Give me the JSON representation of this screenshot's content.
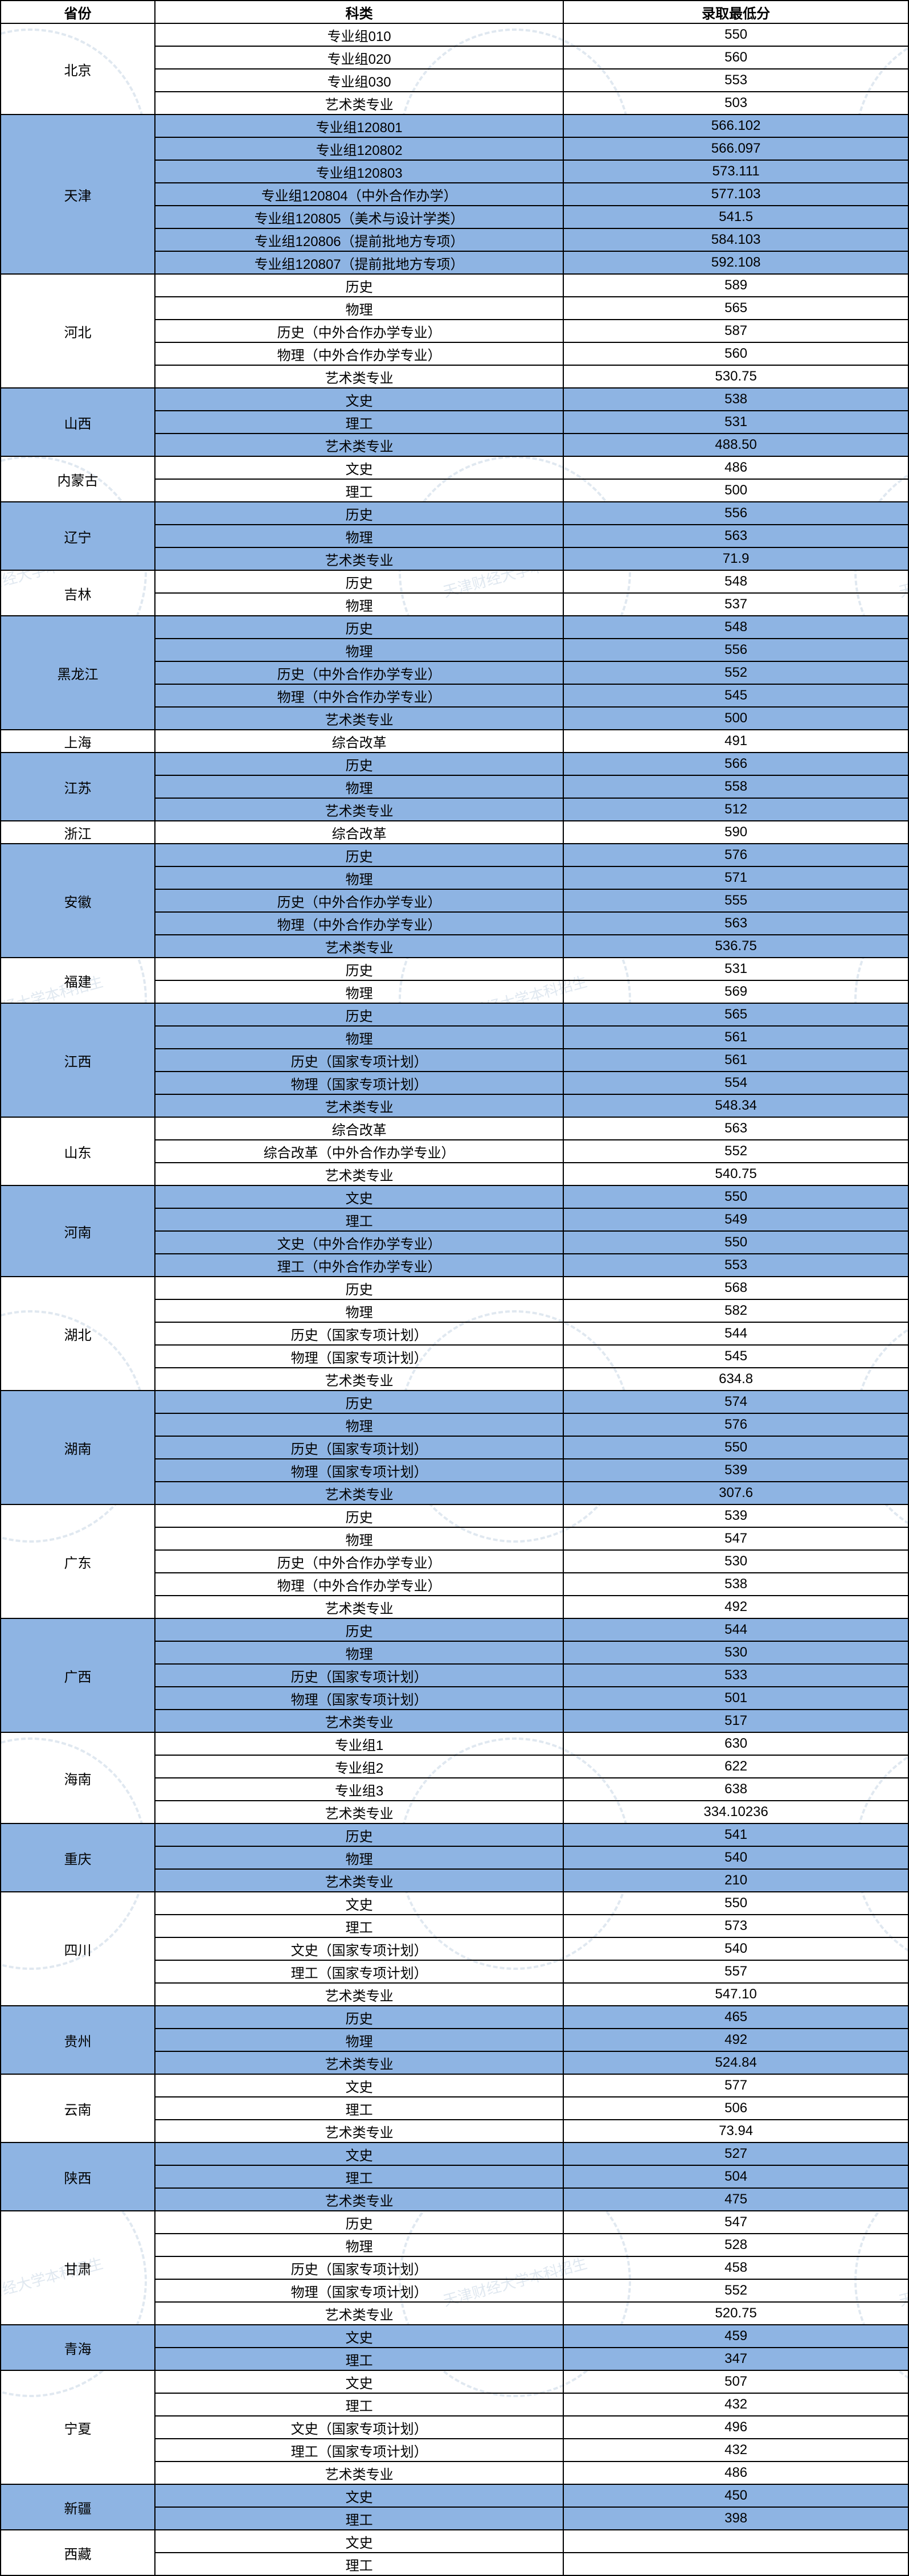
{
  "headers": [
    "省份",
    "科类",
    "录取最低分"
  ],
  "colors": {
    "row_alt_bg": "#8eb4e3",
    "row_bg": "#ffffff",
    "border": "#000000",
    "watermark": "#e0e8f0"
  },
  "provinces": [
    {
      "name": "北京",
      "colored": false,
      "rows": [
        [
          "专业组010",
          "550"
        ],
        [
          "专业组020",
          "560"
        ],
        [
          "专业组030",
          "553"
        ],
        [
          "艺术类专业",
          "503"
        ]
      ]
    },
    {
      "name": "天津",
      "colored": true,
      "rows": [
        [
          "专业组120801",
          "566.102"
        ],
        [
          "专业组120802",
          "566.097"
        ],
        [
          "专业组120803",
          "573.111"
        ],
        [
          "专业组120804（中外合作办学）",
          "577.103"
        ],
        [
          "专业组120805（美术与设计学类）",
          "541.5"
        ],
        [
          "专业组120806（提前批地方专项）",
          "584.103"
        ],
        [
          "专业组120807（提前批地方专项）",
          "592.108"
        ]
      ]
    },
    {
      "name": "河北",
      "colored": false,
      "rows": [
        [
          "历史",
          "589"
        ],
        [
          "物理",
          "565"
        ],
        [
          "历史（中外合作办学专业）",
          "587"
        ],
        [
          "物理（中外合作办学专业）",
          "560"
        ],
        [
          "艺术类专业",
          "530.75"
        ]
      ]
    },
    {
      "name": "山西",
      "colored": true,
      "rows": [
        [
          "文史",
          "538"
        ],
        [
          "理工",
          "531"
        ],
        [
          "艺术类专业",
          "488.50"
        ]
      ]
    },
    {
      "name": "内蒙古",
      "colored": false,
      "rows": [
        [
          "文史",
          "486"
        ],
        [
          "理工",
          "500"
        ]
      ]
    },
    {
      "name": "辽宁",
      "colored": true,
      "rows": [
        [
          "历史",
          "556"
        ],
        [
          "物理",
          "563"
        ],
        [
          "艺术类专业",
          "71.9"
        ]
      ]
    },
    {
      "name": "吉林",
      "colored": false,
      "rows": [
        [
          "历史",
          "548"
        ],
        [
          "物理",
          "537"
        ]
      ]
    },
    {
      "name": "黑龙江",
      "colored": true,
      "rows": [
        [
          "历史",
          "548"
        ],
        [
          "物理",
          "556"
        ],
        [
          "历史（中外合作办学专业）",
          "552"
        ],
        [
          "物理（中外合作办学专业）",
          "545"
        ],
        [
          "艺术类专业",
          "500"
        ]
      ]
    },
    {
      "name": "上海",
      "colored": false,
      "rows": [
        [
          "综合改革",
          "491"
        ]
      ]
    },
    {
      "name": "江苏",
      "colored": true,
      "rows": [
        [
          "历史",
          "566"
        ],
        [
          "物理",
          "558"
        ],
        [
          "艺术类专业",
          "512"
        ]
      ]
    },
    {
      "name": "浙江",
      "colored": false,
      "rows": [
        [
          "综合改革",
          "590"
        ]
      ]
    },
    {
      "name": "安徽",
      "colored": true,
      "rows": [
        [
          "历史",
          "576"
        ],
        [
          "物理",
          "571"
        ],
        [
          "历史（中外合作办学专业）",
          "555"
        ],
        [
          "物理（中外合作办学专业）",
          "563"
        ],
        [
          "艺术类专业",
          "536.75"
        ]
      ]
    },
    {
      "name": "福建",
      "colored": false,
      "rows": [
        [
          "历史",
          "531"
        ],
        [
          "物理",
          "569"
        ]
      ]
    },
    {
      "name": "江西",
      "colored": true,
      "rows": [
        [
          "历史",
          "565"
        ],
        [
          "物理",
          "561"
        ],
        [
          "历史（国家专项计划）",
          "561"
        ],
        [
          "物理（国家专项计划）",
          "554"
        ],
        [
          "艺术类专业",
          "548.34"
        ]
      ]
    },
    {
      "name": "山东",
      "colored": false,
      "rows": [
        [
          "综合改革",
          "563"
        ],
        [
          "综合改革（中外合作办学专业）",
          "552"
        ],
        [
          "艺术类专业",
          "540.75"
        ]
      ]
    },
    {
      "name": "河南",
      "colored": true,
      "rows": [
        [
          "文史",
          "550"
        ],
        [
          "理工",
          "549"
        ],
        [
          "文史（中外合作办学专业）",
          "550"
        ],
        [
          "理工（中外合作办学专业）",
          "553"
        ]
      ]
    },
    {
      "name": "湖北",
      "colored": false,
      "rows": [
        [
          "历史",
          "568"
        ],
        [
          "物理",
          "582"
        ],
        [
          "历史（国家专项计划）",
          "544"
        ],
        [
          "物理（国家专项计划）",
          "545"
        ],
        [
          "艺术类专业",
          "634.8"
        ]
      ]
    },
    {
      "name": "湖南",
      "colored": true,
      "rows": [
        [
          "历史",
          "574"
        ],
        [
          "物理",
          "576"
        ],
        [
          "历史（国家专项计划）",
          "550"
        ],
        [
          "物理（国家专项计划）",
          "539"
        ],
        [
          "艺术类专业",
          "307.6"
        ]
      ]
    },
    {
      "name": "广东",
      "colored": false,
      "rows": [
        [
          "历史",
          "539"
        ],
        [
          "物理",
          "547"
        ],
        [
          "历史（中外合作办学专业）",
          "530"
        ],
        [
          "物理（中外合作办学专业）",
          "538"
        ],
        [
          "艺术类专业",
          "492"
        ]
      ]
    },
    {
      "name": "广西",
      "colored": true,
      "rows": [
        [
          "历史",
          "544"
        ],
        [
          "物理",
          "530"
        ],
        [
          "历史（国家专项计划）",
          "533"
        ],
        [
          "物理（国家专项计划）",
          "501"
        ],
        [
          "艺术类专业",
          "517"
        ]
      ]
    },
    {
      "name": "海南",
      "colored": false,
      "rows": [
        [
          "专业组1",
          "630"
        ],
        [
          "专业组2",
          "622"
        ],
        [
          "专业组3",
          "638"
        ],
        [
          "艺术类专业",
          "334.10236"
        ]
      ]
    },
    {
      "name": "重庆",
      "colored": true,
      "rows": [
        [
          "历史",
          "541"
        ],
        [
          "物理",
          "540"
        ],
        [
          "艺术类专业",
          "210"
        ]
      ]
    },
    {
      "name": "四川",
      "colored": false,
      "rows": [
        [
          "文史",
          "550"
        ],
        [
          "理工",
          "573"
        ],
        [
          "文史（国家专项计划）",
          "540"
        ],
        [
          "理工（国家专项计划）",
          "557"
        ],
        [
          "艺术类专业",
          "547.10"
        ]
      ]
    },
    {
      "name": "贵州",
      "colored": true,
      "rows": [
        [
          "历史",
          "465"
        ],
        [
          "物理",
          "492"
        ],
        [
          "艺术类专业",
          "524.84"
        ]
      ]
    },
    {
      "name": "云南",
      "colored": false,
      "rows": [
        [
          "文史",
          "577"
        ],
        [
          "理工",
          "506"
        ],
        [
          "艺术类专业",
          "73.94"
        ]
      ]
    },
    {
      "name": "陕西",
      "colored": true,
      "rows": [
        [
          "文史",
          "527"
        ],
        [
          "理工",
          "504"
        ],
        [
          "艺术类专业",
          "475"
        ]
      ]
    },
    {
      "name": "甘肃",
      "colored": false,
      "rows": [
        [
          "历史",
          "547"
        ],
        [
          "物理",
          "528"
        ],
        [
          "历史（国家专项计划）",
          "458"
        ],
        [
          "物理（国家专项计划）",
          "552"
        ],
        [
          "艺术类专业",
          "520.75"
        ]
      ]
    },
    {
      "name": "青海",
      "colored": true,
      "rows": [
        [
          "文史",
          "459"
        ],
        [
          "理工",
          "347"
        ]
      ]
    },
    {
      "name": "宁夏",
      "colored": false,
      "rows": [
        [
          "文史",
          "507"
        ],
        [
          "理工",
          "432"
        ],
        [
          "文史（国家专项计划）",
          "496"
        ],
        [
          "理工（国家专项计划）",
          "432"
        ],
        [
          "艺术类专业",
          "486"
        ]
      ]
    },
    {
      "name": "新疆",
      "colored": true,
      "rows": [
        [
          "文史",
          "450"
        ],
        [
          "理工",
          "398"
        ]
      ]
    },
    {
      "name": "西藏",
      "colored": false,
      "rows": [
        [
          "文史",
          ""
        ],
        [
          "理工",
          ""
        ]
      ]
    }
  ]
}
